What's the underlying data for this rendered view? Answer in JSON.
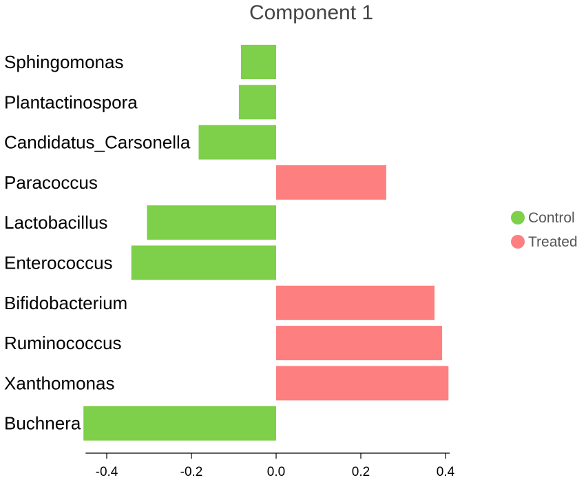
{
  "chart_data": {
    "type": "bar",
    "orientation": "horizontal",
    "title": "Component 1",
    "categories": [
      "Sphingomonas",
      "Plantactinospora",
      "Candidatus_Carsonella",
      "Paracoccus",
      "Lactobacillus",
      "Enterococcus",
      "Bifidobacterium",
      "Ruminococcus",
      "Xanthomonas",
      "Buchnera"
    ],
    "values": [
      -0.083,
      -0.088,
      -0.183,
      0.26,
      -0.305,
      -0.342,
      0.374,
      0.392,
      0.407,
      -0.455
    ],
    "groups": [
      "Control",
      "Control",
      "Control",
      "Treated",
      "Control",
      "Control",
      "Treated",
      "Treated",
      "Treated",
      "Control"
    ],
    "xlim": [
      -0.45,
      0.41
    ],
    "xticks": [
      -0.4,
      -0.2,
      0.0,
      0.2,
      0.4
    ],
    "xtick_labels": [
      "-0.4",
      "-0.2",
      "0.0",
      "0.2",
      "0.4"
    ],
    "xlabel": "",
    "ylabel": "",
    "grid": false,
    "legend": {
      "position": "right",
      "entries": [
        {
          "label": "Control",
          "color": "#7ecf4a"
        },
        {
          "label": "Treated",
          "color": "#fe7f80"
        }
      ]
    }
  }
}
